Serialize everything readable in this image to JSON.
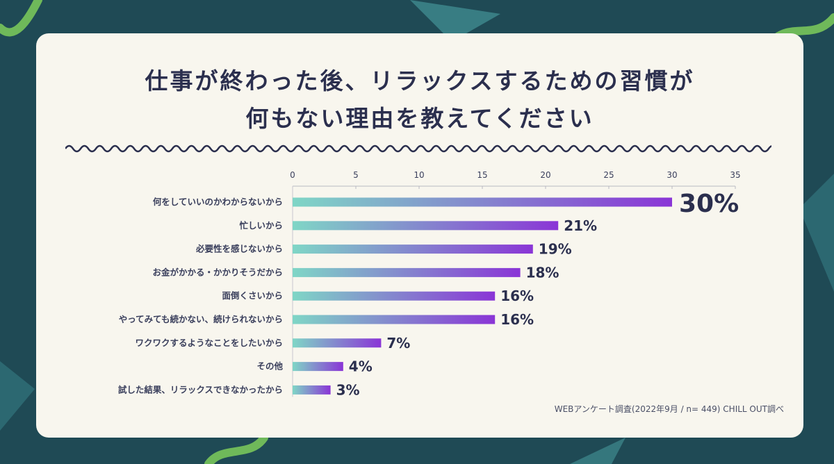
{
  "title": {
    "line1": "仕事が終わった後、リラックスするための習慣が",
    "line2": "何もない理由を教えてください"
  },
  "source": "WEBアンケート調査(2022年9月 / n= 449) CHILL OUT調べ",
  "colors": {
    "background": "#1f4a55",
    "card": "#f8f6ee",
    "title": "#2b2f4e",
    "bar_start": "#7fd6c6",
    "bar_end": "#8a35d6",
    "accent_green": "#6fb95a"
  },
  "chart_data": {
    "type": "bar",
    "orientation": "horizontal",
    "categories": [
      "何をしていいのかわからないから",
      "忙しいから",
      "必要性を感じないから",
      "お金がかかる・かかりそうだから",
      "面倒くさいから",
      "やってみても続かない、続けられないから",
      "ワクワクするようなことをしたいから",
      "その他",
      "試した結果、リラックスできなかったから"
    ],
    "values": [
      30,
      21,
      19,
      18,
      16,
      16,
      7,
      4,
      3
    ],
    "value_labels": [
      "30%",
      "21%",
      "19%",
      "18%",
      "16%",
      "16%",
      "7%",
      "4%",
      "3%"
    ],
    "xlim": [
      0,
      35
    ],
    "xticks": [
      "0",
      "5",
      "10",
      "15",
      "20",
      "25",
      "30",
      "35"
    ],
    "grid": false
  }
}
